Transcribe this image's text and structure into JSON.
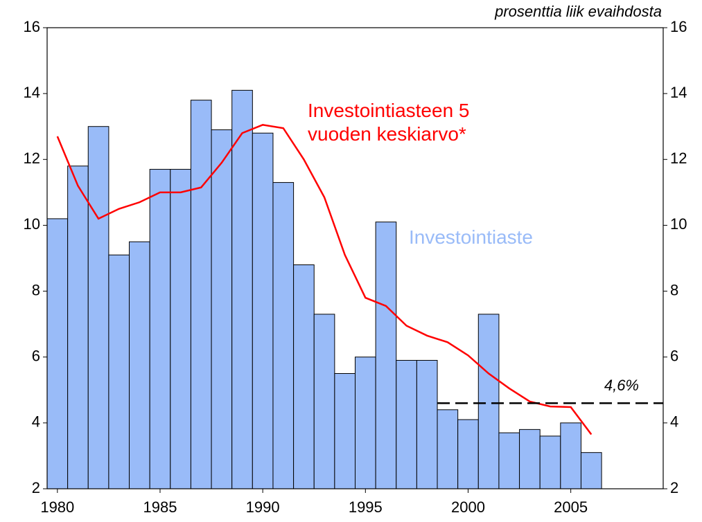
{
  "chart_data": {
    "type": "bar",
    "subtitle": "prosenttia liik evaihdosta",
    "x": [
      1980,
      1981,
      1982,
      1983,
      1984,
      1985,
      1986,
      1987,
      1988,
      1989,
      1990,
      1991,
      1992,
      1993,
      1994,
      1995,
      1996,
      1997,
      1998,
      1999,
      2000,
      2001,
      2002,
      2003,
      2004,
      2005,
      2006
    ],
    "series": [
      {
        "name": "Investointiaste",
        "type": "bar",
        "color": "#99bbf8",
        "values": [
          10.2,
          11.8,
          13.0,
          9.1,
          9.5,
          11.7,
          11.7,
          13.8,
          12.9,
          14.1,
          12.8,
          11.3,
          8.8,
          7.3,
          5.5,
          6.0,
          10.1,
          5.9,
          5.9,
          4.4,
          4.1,
          7.3,
          3.7,
          3.8,
          3.6,
          4.0,
          3.1
        ]
      },
      {
        "name": "Investointiasteen 5 vuoden keskiarvo*",
        "type": "line",
        "color": "#ff0000",
        "values": [
          12.7,
          11.2,
          10.2,
          10.5,
          10.7,
          11.0,
          11.0,
          11.15,
          11.9,
          12.8,
          13.05,
          12.95,
          12.0,
          10.85,
          9.1,
          7.8,
          7.55,
          6.95,
          6.65,
          6.45,
          6.05,
          5.5,
          5.05,
          4.65,
          4.5,
          4.48,
          3.65
        ]
      }
    ],
    "reference_line": {
      "value": 4.6,
      "label": "4,6%",
      "x_start": 1998.5
    },
    "xlim": [
      1979.5,
      2009.5
    ],
    "xticks": [
      1980,
      1985,
      1990,
      1995,
      2000,
      2005
    ],
    "ylim": [
      2,
      16
    ],
    "yticks": [
      2,
      4,
      6,
      8,
      10,
      12,
      14,
      16
    ],
    "y2lim": [
      2,
      16
    ],
    "y2ticks": [
      2,
      4,
      6,
      8,
      10,
      12,
      14,
      16
    ]
  }
}
